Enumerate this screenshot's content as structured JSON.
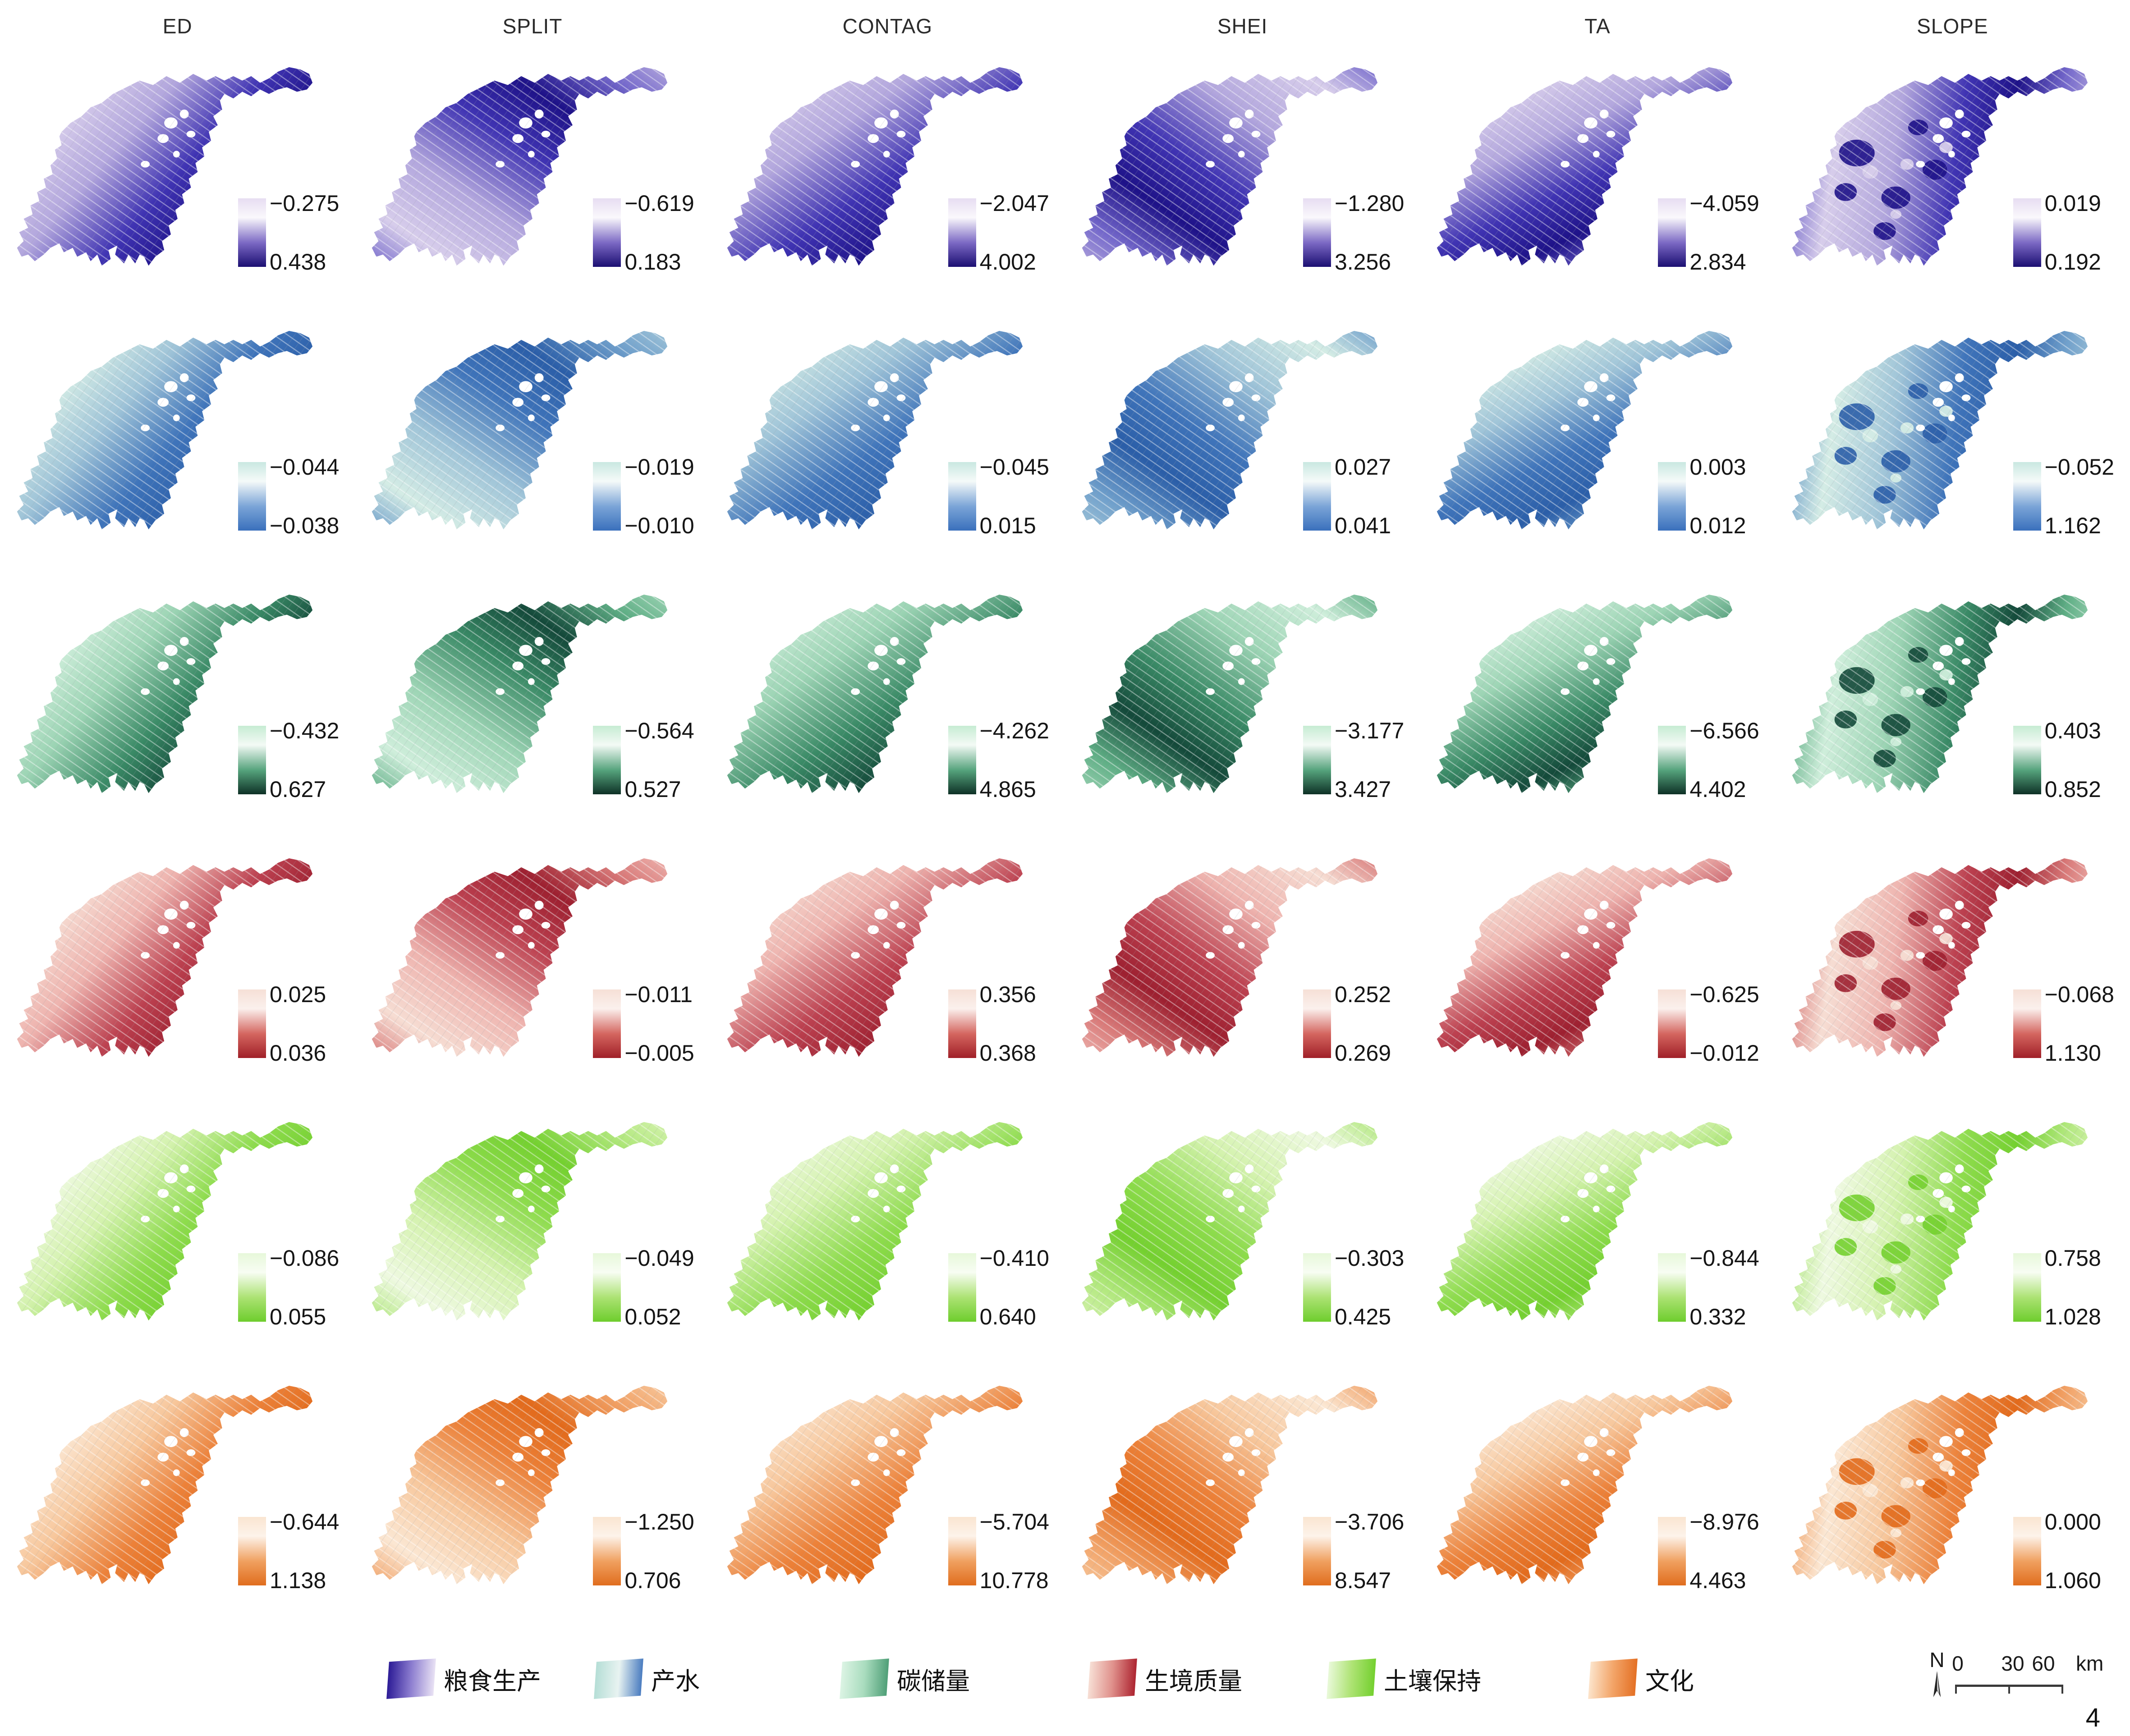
{
  "columns": [
    "ED",
    "SPLIT",
    "CONTAG",
    "SHEI",
    "TA",
    "SLOPE"
  ],
  "rows": [
    {
      "service": "粮食生产",
      "shades": [
        "#d7cdeb",
        "#b2a6dd",
        "#7468cb",
        "#4034b3",
        "#1e1288"
      ],
      "bar": [
        "#e7ddf2",
        "#faf8fc",
        "#7b68c4",
        "#1b0f72"
      ],
      "cells": [
        {
          "top": "−0.275",
          "bottom": "0.438"
        },
        {
          "top": "−0.619",
          "bottom": "0.183"
        },
        {
          "top": "−2.047",
          "bottom": "4.002"
        },
        {
          "top": "−1.280",
          "bottom": "3.256"
        },
        {
          "top": "−4.059",
          "bottom": "2.834"
        },
        {
          "top": "0.019",
          "bottom": "0.192"
        }
      ]
    },
    {
      "service": "产水",
      "shades": [
        "#d4ece5",
        "#9fc4d8",
        "#6f9fcb",
        "#3f74ba",
        "#2b5ea8"
      ],
      "bar": [
        "#c9e8e1",
        "#f5faf9",
        "#7aa4d7",
        "#3a70bc"
      ],
      "cells": [
        {
          "top": "−0.044",
          "bottom": "−0.038"
        },
        {
          "top": "−0.019",
          "bottom": "−0.010"
        },
        {
          "top": "−0.045",
          "bottom": "0.015"
        },
        {
          "top": "0.027",
          "bottom": "0.041"
        },
        {
          "top": "0.003",
          "bottom": "0.012"
        },
        {
          "top": "−0.052",
          "bottom": "1.162"
        }
      ]
    },
    {
      "service": "碳储量",
      "shades": [
        "#cfeedb",
        "#9cd4b4",
        "#5fae85",
        "#3a8a66",
        "#14493a"
      ],
      "bar": [
        "#c6ecd3",
        "#f3faf5",
        "#55a37c",
        "#0e3126"
      ],
      "cells": [
        {
          "top": "−0.432",
          "bottom": "0.627"
        },
        {
          "top": "−0.564",
          "bottom": "0.527"
        },
        {
          "top": "−4.262",
          "bottom": "4.865"
        },
        {
          "top": "−3.177",
          "bottom": "3.427"
        },
        {
          "top": "−6.566",
          "bottom": "4.402"
        },
        {
          "top": "0.403",
          "bottom": "0.852"
        }
      ]
    },
    {
      "service": "生境质量",
      "shades": [
        "#f6ddd3",
        "#eeb3ae",
        "#d97a79",
        "#bc4150",
        "#9d2030"
      ],
      "bar": [
        "#f6e0d6",
        "#fbf0ed",
        "#d4655f",
        "#a02028"
      ],
      "cells": [
        {
          "top": "0.025",
          "bottom": "0.036"
        },
        {
          "top": "−0.011",
          "bottom": "−0.005"
        },
        {
          "top": "0.356",
          "bottom": "0.368"
        },
        {
          "top": "0.252",
          "bottom": "0.269"
        },
        {
          "top": "−0.625",
          "bottom": "−0.012"
        },
        {
          "top": "−0.068",
          "bottom": "1.130"
        }
      ]
    },
    {
      "service": "土壤保持",
      "shades": [
        "#eef9e0",
        "#d4f2ae",
        "#b2e87e",
        "#8edc4d",
        "#74d02f"
      ],
      "bar": [
        "#e7f8da",
        "#f8fdf3",
        "#abe272",
        "#6ecd2d"
      ],
      "cells": [
        {
          "top": "−0.086",
          "bottom": "0.055"
        },
        {
          "top": "−0.049",
          "bottom": "0.052"
        },
        {
          "top": "−0.410",
          "bottom": "0.640"
        },
        {
          "top": "−0.303",
          "bottom": "0.425"
        },
        {
          "top": "−0.844",
          "bottom": "0.332"
        },
        {
          "top": "0.758",
          "bottom": "1.028"
        }
      ]
    },
    {
      "service": "文化",
      "shades": [
        "#fbe7d3",
        "#f7c79c",
        "#f2a368",
        "#ec8139",
        "#e26a1b"
      ],
      "bar": [
        "#fae5d1",
        "#fdf3ea",
        "#f0a05f",
        "#e06d1e"
      ],
      "cells": [
        {
          "top": "−0.644",
          "bottom": "1.138"
        },
        {
          "top": "−1.250",
          "bottom": "0.706"
        },
        {
          "top": "−5.704",
          "bottom": "10.778"
        },
        {
          "top": "−3.706",
          "bottom": "8.547"
        },
        {
          "top": "−8.976",
          "bottom": "4.463"
        },
        {
          "top": "0.000",
          "bottom": "1.060"
        }
      ]
    }
  ],
  "footer": {
    "legend": [
      {
        "label": "粮食生产",
        "colors": [
          "#2c1b96",
          "#8d7ed0",
          "#e9e2f4"
        ]
      },
      {
        "label": "产水",
        "colors": [
          "#b5ded6",
          "#e8f3f1",
          "#4a7cc0"
        ]
      },
      {
        "label": "碳储量",
        "colors": [
          "#dcf4e4",
          "#a9dcbe",
          "#4f9f77"
        ]
      },
      {
        "label": "生境质量",
        "colors": [
          "#f7dfd5",
          "#e0918c",
          "#ad2430"
        ]
      },
      {
        "label": "土壤保持",
        "colors": [
          "#e9f9d9",
          "#aee374",
          "#74d02f"
        ]
      },
      {
        "label": "文化",
        "colors": [
          "#fce4cb",
          "#f3a569",
          "#e47024"
        ]
      }
    ],
    "scalebar": {
      "north": "N",
      "t0": "0",
      "t1": "30",
      "t2": "60",
      "unit": "km"
    },
    "page_number": "4"
  }
}
